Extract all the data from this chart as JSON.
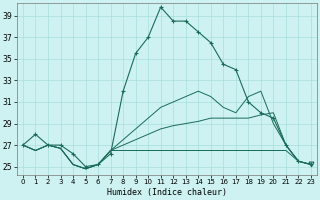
{
  "xlabel": "Humidex (Indice chaleur)",
  "xlim": [
    -0.5,
    23.5
  ],
  "ylim": [
    24.2,
    40.2
  ],
  "yticks": [
    25,
    27,
    29,
    31,
    33,
    35,
    37,
    39
  ],
  "xticks": [
    0,
    1,
    2,
    3,
    4,
    5,
    6,
    7,
    8,
    9,
    10,
    11,
    12,
    13,
    14,
    15,
    16,
    17,
    18,
    19,
    20,
    21,
    22,
    23
  ],
  "bg_color": "#cef2f2",
  "grid_color": "#a8dede",
  "line_color": "#1a6b5a",
  "main_line": [
    27.0,
    28.0,
    27.0,
    27.0,
    26.2,
    25.0,
    25.2,
    26.2,
    32.0,
    35.5,
    37.0,
    39.8,
    38.5,
    38.5,
    37.5,
    36.5,
    34.5,
    34.0,
    31.0,
    30.0,
    29.5,
    27.0,
    25.5,
    25.2
  ],
  "line_flat": [
    27.0,
    26.5,
    27.0,
    26.7,
    25.2,
    24.8,
    25.2,
    26.5,
    26.5,
    26.5,
    26.5,
    26.5,
    26.5,
    26.5,
    26.5,
    26.5,
    26.5,
    26.5,
    26.5,
    26.5,
    26.5,
    26.5,
    25.5,
    25.2
  ],
  "line_mid": [
    27.0,
    26.5,
    27.0,
    26.7,
    25.2,
    24.8,
    25.2,
    26.5,
    27.0,
    27.5,
    28.0,
    28.5,
    28.8,
    29.0,
    29.2,
    29.5,
    29.5,
    29.5,
    29.5,
    29.8,
    30.0,
    27.0,
    25.5,
    25.2
  ],
  "line_upper": [
    27.0,
    26.5,
    27.0,
    26.7,
    25.2,
    24.8,
    25.2,
    26.5,
    27.5,
    28.5,
    29.5,
    30.5,
    31.0,
    31.5,
    32.0,
    31.5,
    30.5,
    30.0,
    31.5,
    32.0,
    29.0,
    27.0,
    25.5,
    25.2
  ],
  "marker_every_main": [
    0,
    1,
    2,
    3,
    4,
    5,
    6,
    7,
    8,
    9,
    10,
    11,
    12,
    13,
    14,
    15,
    16,
    17,
    18,
    19,
    20,
    21,
    22,
    23
  ],
  "triangle_at": 23
}
